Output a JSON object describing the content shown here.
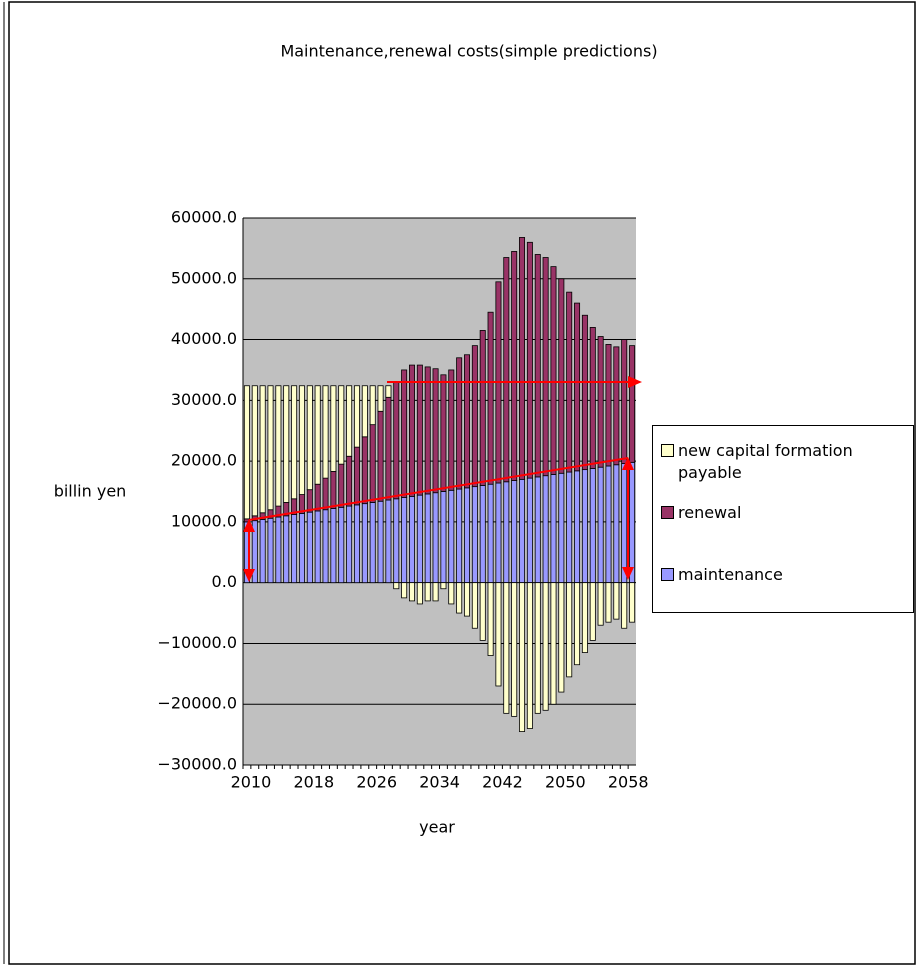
{
  "chart_data": {
    "type": "bar",
    "stacked": true,
    "title": "Maintenance,renewal costs(simple  predictions)",
    "x_label": "year",
    "y_label": "billin yen",
    "categories": [
      "2010",
      null,
      null,
      null,
      null,
      null,
      null,
      null,
      "2018",
      null,
      null,
      null,
      null,
      null,
      null,
      null,
      "2026",
      null,
      null,
      null,
      null,
      null,
      null,
      null,
      "2034",
      null,
      null,
      null,
      null,
      null,
      null,
      null,
      "2042",
      null,
      null,
      null,
      null,
      null,
      null,
      null,
      "2050",
      null,
      null,
      null,
      null,
      null,
      null,
      null,
      "2058",
      null
    ],
    "series": [
      {
        "name": "maintenance",
        "color": "#9999ff",
        "values": [
          10000,
          10200,
          10400,
          10600,
          10800,
          11000,
          11200,
          11400,
          11600,
          11800,
          12000,
          12200,
          12400,
          12600,
          12800,
          13000,
          13200,
          13400,
          13600,
          13800,
          14000,
          14200,
          14400,
          14600,
          14800,
          15000,
          15200,
          15400,
          15600,
          15800,
          16000,
          16200,
          16400,
          16600,
          16800,
          17000,
          17200,
          17400,
          17600,
          17800,
          18000,
          18200,
          18400,
          18600,
          18800,
          19000,
          19200,
          19400,
          19600,
          19800
        ]
      },
      {
        "name": "renewal",
        "color": "#993366",
        "values": [
          500,
          800,
          1100,
          1400,
          1800,
          2200,
          2600,
          3100,
          3700,
          4400,
          5200,
          6100,
          7100,
          8200,
          9500,
          11000,
          12800,
          14800,
          16900,
          19200,
          21000,
          21600,
          21400,
          20900,
          20400,
          19200,
          19800,
          21600,
          21900,
          23200,
          25500,
          28300,
          33100,
          36900,
          37700,
          39800,
          38800,
          36600,
          35900,
          34200,
          32000,
          29600,
          27600,
          25400,
          23200,
          21500,
          20000,
          19400,
          20400,
          19200
        ]
      },
      {
        "name": "new capital formation payable",
        "color": "#ffffcc",
        "values": [
          21900,
          21400,
          20900,
          20400,
          19800,
          19200,
          18600,
          17900,
          17100,
          16200,
          15200,
          14100,
          12900,
          11600,
          10100,
          8400,
          6400,
          4200,
          1900,
          -1000,
          -2500,
          -3000,
          -3500,
          -3000,
          -3000,
          -1000,
          -3500,
          -5000,
          -5500,
          -7500,
          -9500,
          -12000,
          -17000,
          -21500,
          -22000,
          -24500,
          -24000,
          -21500,
          -21000,
          -20000,
          -18000,
          -15500,
          -13500,
          -11500,
          -9500,
          -7000,
          -6500,
          -6000,
          -7500,
          -6500
        ]
      }
    ],
    "ylim": [
      -30000,
      60000
    ],
    "yticks": [
      {
        "value": -30000,
        "label": "−30000.0"
      },
      {
        "value": -20000,
        "label": "−20000.0"
      },
      {
        "value": -10000,
        "label": "−10000.0"
      },
      {
        "value": 0,
        "label": "0.0"
      },
      {
        "value": 10000,
        "label": "10000.0"
      },
      {
        "value": 20000,
        "label": "20000.0"
      },
      {
        "value": 30000,
        "label": "30000.0"
      },
      {
        "value": 40000,
        "label": "40000.0"
      },
      {
        "value": 50000,
        "label": "50000.0"
      },
      {
        "value": 60000,
        "label": "60000.0"
      }
    ],
    "grid": true,
    "legend": "right"
  }
}
